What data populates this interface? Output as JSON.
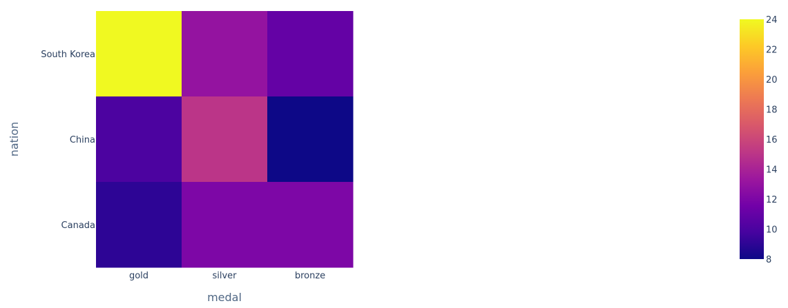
{
  "chart_data": {
    "type": "heatmap",
    "xlabel": "medal",
    "ylabel": "nation",
    "x_categories": [
      "gold",
      "silver",
      "bronze"
    ],
    "y_categories": [
      "South Korea",
      "China",
      "Canada"
    ],
    "z": [
      [
        24,
        13,
        11
      ],
      [
        10,
        15,
        8
      ],
      [
        9,
        12,
        12
      ]
    ],
    "colorbar": {
      "range": [
        8,
        24
      ],
      "ticks": [
        "8",
        "10",
        "12",
        "14",
        "16",
        "18",
        "20",
        "22",
        "24"
      ],
      "colorscale": [
        "#0d0887",
        "#46039f",
        "#7201a8",
        "#9c179e",
        "#bd3786",
        "#d8576b",
        "#ed7953",
        "#fb9f3a",
        "#fdca26",
        "#f0f921"
      ]
    },
    "grid": false
  }
}
